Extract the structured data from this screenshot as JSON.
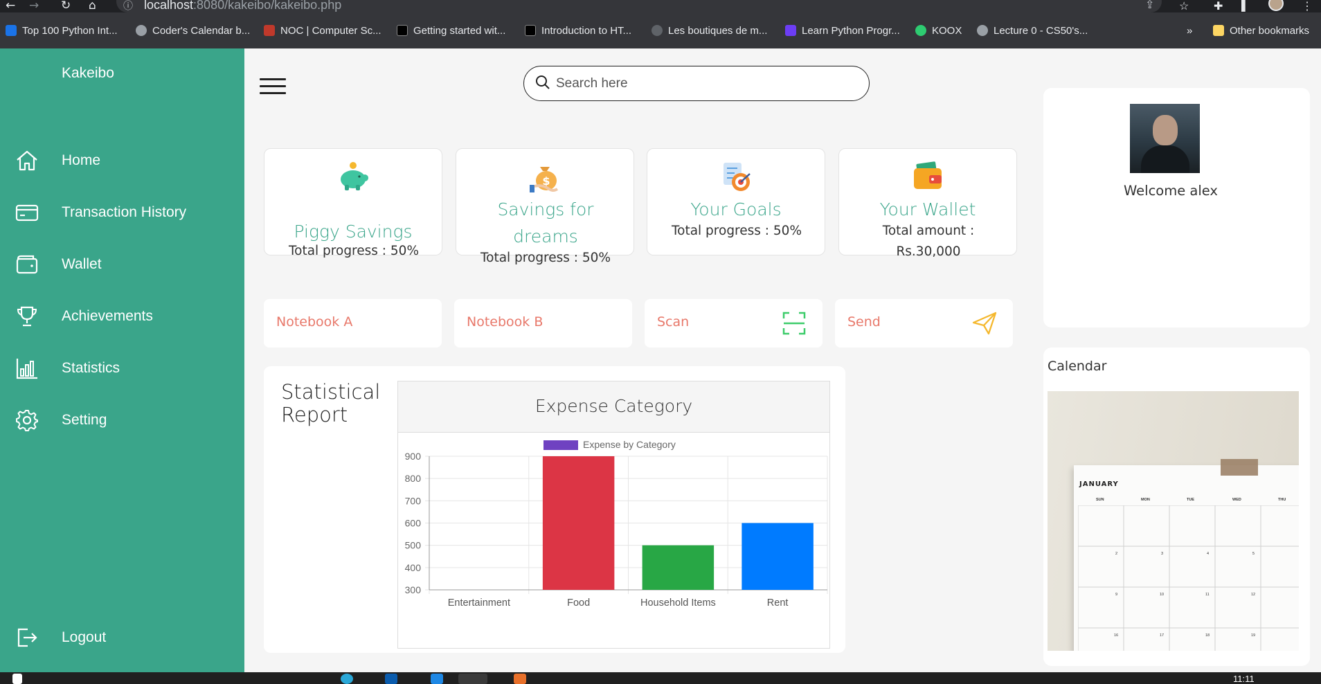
{
  "browser": {
    "url_host": "localhost",
    "url_path": ":8080/kakeibo/kakeibo.php",
    "bookmarks": [
      {
        "label": "Top 100 Python Int...",
        "color": "#1a73e8"
      },
      {
        "label": "Coder's Calendar b...",
        "color": "#9aa0a6"
      },
      {
        "label": "NOC | Computer Sc...",
        "color": "#c0392b"
      },
      {
        "label": "Getting started wit...",
        "color": "#000000"
      },
      {
        "label": "Introduction to HT...",
        "color": "#000000"
      },
      {
        "label": "Les boutiques de m...",
        "color": "#5f6368"
      },
      {
        "label": "Learn Python Progr...",
        "color": "#6c3df4"
      },
      {
        "label": "KOOX",
        "color": "#2ecc71"
      },
      {
        "label": "Lecture 0 - CS50's...",
        "color": "#9aa0a6"
      }
    ],
    "more_bookmarks": "»",
    "other_bookmarks": "Other bookmarks"
  },
  "sidebar": {
    "brand": "Kakeibo",
    "items": [
      {
        "label": "Home",
        "icon": "home-icon"
      },
      {
        "label": "Transaction History",
        "icon": "card-icon"
      },
      {
        "label": "Wallet",
        "icon": "wallet-icon"
      },
      {
        "label": "Achievements",
        "icon": "trophy-icon"
      },
      {
        "label": "Statistics",
        "icon": "bar-chart-icon"
      },
      {
        "label": "Setting",
        "icon": "gear-icon"
      }
    ],
    "logout": "Logout"
  },
  "search": {
    "placeholder": "Search here"
  },
  "cards": [
    {
      "title": "Piggy Savings",
      "subtitle": "Total progress : 50%",
      "icon": "piggy-bank-icon"
    },
    {
      "title": "Savings for dreams",
      "subtitle": "Total progress : 50%",
      "icon": "money-bag-icon"
    },
    {
      "title": "Your Goals",
      "subtitle": "Total progress : 50%",
      "icon": "goal-target-icon"
    },
    {
      "title": "Your Wallet",
      "subtitle": "Total amount : Rs.30,000",
      "icon": "wallet-color-icon"
    }
  ],
  "actions": [
    {
      "label": "Notebook A"
    },
    {
      "label": "Notebook B"
    },
    {
      "label": "Scan",
      "icon": "scan-icon"
    },
    {
      "label": "Send",
      "icon": "send-icon"
    }
  ],
  "report": {
    "title": "Statistical Report",
    "chart_header": "Expense Category"
  },
  "chart_data": {
    "type": "bar",
    "categories": [
      "Entertainment",
      "Food",
      "Household Items",
      "Rent"
    ],
    "series": [
      {
        "name": "Expense by Category",
        "values": [
          null,
          900,
          500,
          600
        ]
      }
    ],
    "bar_colors": [
      "#6f42c1",
      "#dc3545",
      "#28a745",
      "#007bff"
    ],
    "legend_color": "#6f42c1",
    "ylim": [
      300,
      900
    ],
    "yticks": [
      300,
      400,
      500,
      600,
      700,
      800,
      900
    ],
    "grid": true,
    "legend": "top"
  },
  "profile": {
    "welcome": "Welcome alex"
  },
  "calendar": {
    "title": "Calendar",
    "month": "JANUARY",
    "days": [
      "SUN",
      "MON",
      "TUE",
      "WED",
      "THU"
    ],
    "numbers": [
      [
        "2",
        "3",
        "4",
        "5"
      ],
      [
        "9",
        "10",
        "11",
        "12"
      ],
      [
        "16",
        "17",
        "18",
        "19"
      ]
    ]
  },
  "taskbar": {
    "time": "11:11"
  }
}
